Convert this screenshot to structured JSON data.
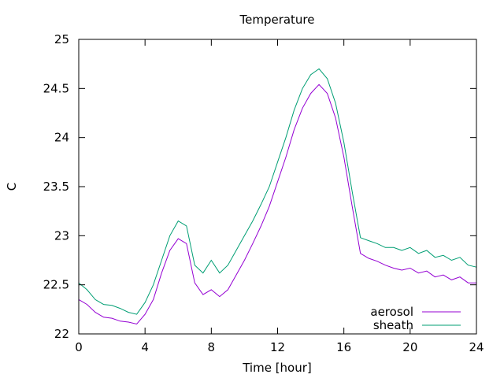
{
  "chart_data": {
    "type": "line",
    "title": "Temperature",
    "xlabel": "Time [hour]",
    "ylabel": "C",
    "xlim": [
      0,
      24
    ],
    "ylim": [
      22,
      25
    ],
    "xticks": [
      0,
      4,
      8,
      12,
      16,
      20,
      24
    ],
    "yticks": [
      22,
      22.5,
      23,
      23.5,
      24,
      24.5,
      25
    ],
    "grid": false,
    "legend_position": "bottom-right",
    "series": [
      {
        "name": "aerosol",
        "color": "#9400d3",
        "x": [
          0,
          0.5,
          1,
          1.5,
          2,
          2.5,
          3,
          3.5,
          4,
          4.5,
          5,
          5.5,
          6,
          6.5,
          7,
          7.5,
          8,
          8.5,
          9,
          9.5,
          10,
          10.5,
          11,
          11.5,
          12,
          12.5,
          13,
          13.5,
          14,
          14.5,
          15,
          15.5,
          16,
          16.5,
          17,
          17.5,
          18,
          18.5,
          19,
          19.5,
          20,
          20.5,
          21,
          21.5,
          22,
          22.5,
          23,
          23.5,
          24
        ],
        "y": [
          22.35,
          22.3,
          22.22,
          22.17,
          22.16,
          22.13,
          22.12,
          22.1,
          22.2,
          22.35,
          22.62,
          22.85,
          22.97,
          22.92,
          22.52,
          22.4,
          22.45,
          22.38,
          22.45,
          22.6,
          22.75,
          22.92,
          23.1,
          23.3,
          23.55,
          23.8,
          24.08,
          24.3,
          24.45,
          24.54,
          24.45,
          24.2,
          23.8,
          23.3,
          22.82,
          22.77,
          22.74,
          22.7,
          22.67,
          22.65,
          22.67,
          22.62,
          22.64,
          22.58,
          22.6,
          22.55,
          22.58,
          22.52,
          22.52
        ]
      },
      {
        "name": "sheath",
        "color": "#009e73",
        "x": [
          0,
          0.5,
          1,
          1.5,
          2,
          2.5,
          3,
          3.5,
          4,
          4.5,
          5,
          5.5,
          6,
          6.5,
          7,
          7.5,
          8,
          8.5,
          9,
          9.5,
          10,
          10.5,
          11,
          11.5,
          12,
          12.5,
          13,
          13.5,
          14,
          14.5,
          15,
          15.5,
          16,
          16.5,
          17,
          17.5,
          18,
          18.5,
          19,
          19.5,
          20,
          20.5,
          21,
          21.5,
          22,
          22.5,
          23,
          23.5,
          24
        ],
        "y": [
          22.52,
          22.45,
          22.35,
          22.3,
          22.29,
          22.26,
          22.22,
          22.2,
          22.32,
          22.5,
          22.75,
          23.0,
          23.15,
          23.1,
          22.7,
          22.62,
          22.75,
          22.62,
          22.7,
          22.85,
          23.0,
          23.15,
          23.32,
          23.5,
          23.75,
          24.0,
          24.28,
          24.5,
          24.64,
          24.7,
          24.6,
          24.35,
          23.95,
          23.45,
          22.98,
          22.95,
          22.92,
          22.88,
          22.88,
          22.85,
          22.88,
          22.82,
          22.85,
          22.78,
          22.8,
          22.75,
          22.78,
          22.7,
          22.68
        ]
      }
    ]
  }
}
